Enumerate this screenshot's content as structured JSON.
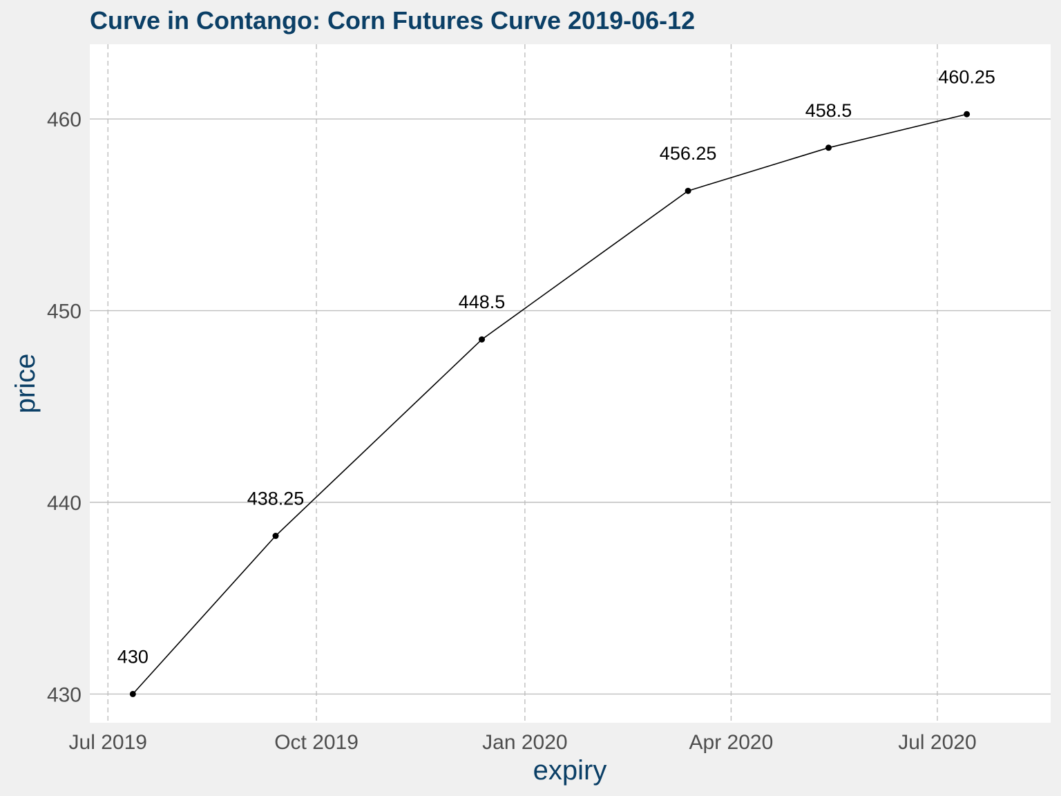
{
  "chart_data": {
    "type": "line",
    "title": "Curve in Contango: Corn Futures Curve 2019-06-12",
    "xlabel": "expiry",
    "ylabel": "price",
    "x_axis_type": "date",
    "xlim": [
      "2019-06-23",
      "2020-08-20"
    ],
    "ylim": [
      428.5,
      463.9
    ],
    "x_ticks": [
      {
        "date": "2019-07-01",
        "label": "Jul 2019"
      },
      {
        "date": "2019-10-01",
        "label": "Oct 2019"
      },
      {
        "date": "2020-01-01",
        "label": "Jan 2020"
      },
      {
        "date": "2020-04-01",
        "label": "Apr 2020"
      },
      {
        "date": "2020-07-01",
        "label": "Jul 2020"
      }
    ],
    "y_ticks": [
      {
        "value": 430,
        "label": "430"
      },
      {
        "value": 440,
        "label": "440"
      },
      {
        "value": 450,
        "label": "450"
      },
      {
        "value": 460,
        "label": "460"
      }
    ],
    "grid": {
      "horizontal": "solid",
      "vertical": "dashed"
    },
    "legend": "none",
    "series": [
      {
        "points": [
          {
            "x": "2019-07-12",
            "y": 430,
            "label": "430"
          },
          {
            "x": "2019-09-13",
            "y": 438.25,
            "label": "438.25"
          },
          {
            "x": "2019-12-13",
            "y": 448.5,
            "label": "448.5"
          },
          {
            "x": "2020-03-13",
            "y": 456.25,
            "label": "456.25"
          },
          {
            "x": "2020-05-14",
            "y": 458.5,
            "label": "458.5"
          },
          {
            "x": "2020-07-14",
            "y": 460.25,
            "label": "460.25"
          }
        ]
      }
    ],
    "colors": {
      "title": "#0B3F66",
      "axis_title": "#0B3F66",
      "tick_label": "#4D4D4D",
      "line": "#000000",
      "point": "#000000",
      "grid": "#BEBEBE",
      "panel": "#FFFFFF",
      "background": "#F0F0F0"
    }
  }
}
